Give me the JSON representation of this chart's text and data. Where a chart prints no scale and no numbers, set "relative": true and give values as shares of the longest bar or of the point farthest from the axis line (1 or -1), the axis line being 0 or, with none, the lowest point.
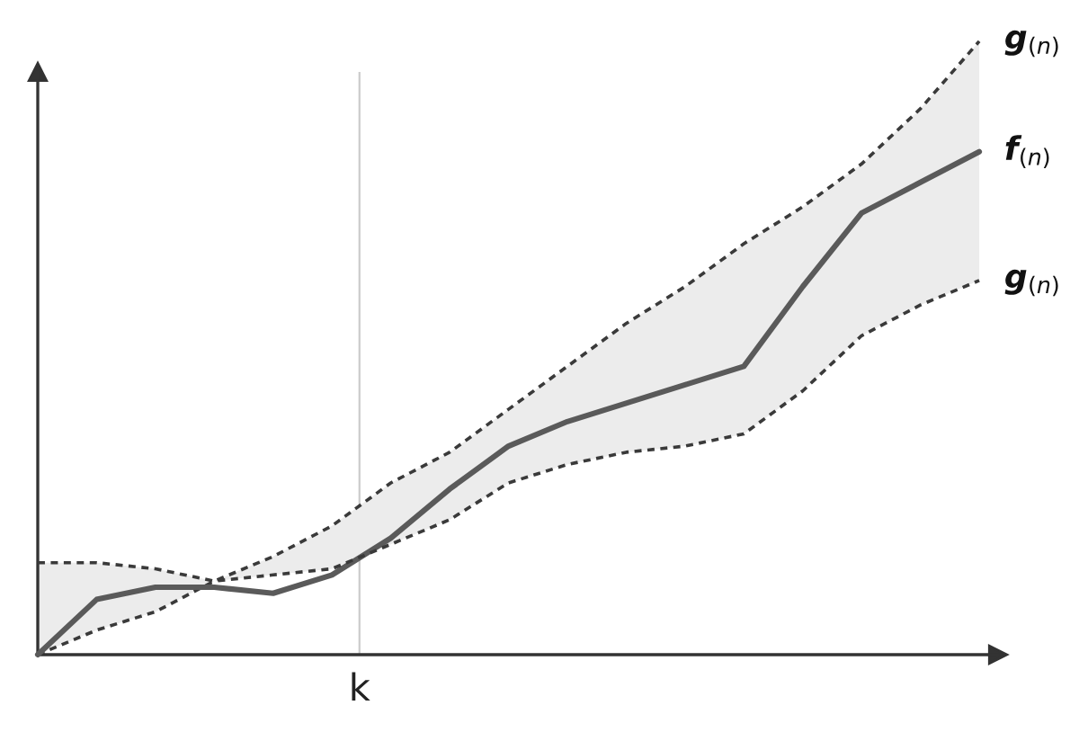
{
  "chart_data": {
    "type": "line",
    "relative": true,
    "line_style": "solid",
    "grid": false,
    "legend": false,
    "categories": [
      null,
      null,
      null,
      null,
      null,
      null,
      null,
      null,
      null,
      null,
      null,
      null,
      null,
      null,
      null,
      null,
      null
    ],
    "annotations": [
      "k"
    ],
    "series": [
      {
        "name": "g$_{(n)}$",
        "color": "#3a3a3a",
        "line_style": "dashed",
        "values": [
          0,
          0.04,
          0.07,
          0.12,
          0.16,
          0.21,
          0.28,
          0.33,
          0.4,
          0.47,
          0.54,
          0.6,
          0.67,
          0.73,
          0.8,
          0.89,
          1.0
        ]
      },
      {
        "name": "f$_{(n)}$",
        "color": "#5a5a5a",
        "values": [
          0,
          0.09,
          0.11,
          0.11,
          0.1,
          0.13,
          0.19,
          0.27,
          0.34,
          0.38,
          0.41,
          0.44,
          0.47,
          0.6,
          0.72,
          0.77,
          0.82
        ],
        "lower": [
          0.15,
          0.15,
          0.14,
          0.12,
          0.13,
          0.14,
          0.18,
          0.22,
          0.28,
          0.31,
          0.33,
          0.34,
          0.36,
          0.43,
          0.52,
          0.57,
          0.61
        ],
        "upper": [
          0,
          0.04,
          0.07,
          0.12,
          0.16,
          0.21,
          0.28,
          0.33,
          0.4,
          0.47,
          0.54,
          0.6,
          0.67,
          0.73,
          0.8,
          0.89,
          1.0
        ]
      },
      {
        "name": "g$_{(n)}$",
        "color": "#3a3a3a",
        "line_style": "dashed",
        "values": [
          0.15,
          0.15,
          0.14,
          0.12,
          0.13,
          0.14,
          0.18,
          0.22,
          0.28,
          0.31,
          0.33,
          0.34,
          0.36,
          0.43,
          0.52,
          0.57,
          0.61
        ]
      }
    ]
  }
}
